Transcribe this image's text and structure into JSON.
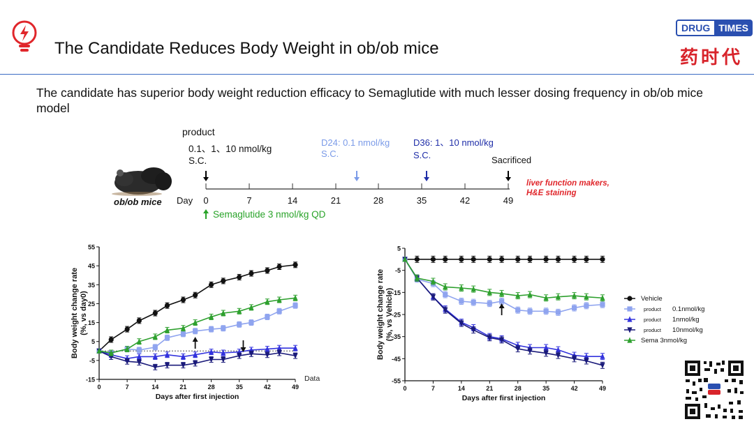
{
  "header": {
    "title": "The Candidate Reduces Body Weight in ob/ob mice",
    "subtitle": "The candidate has superior body weight reduction efficacy to Semaglutide with much lesser dosing frequency in ob/ob mice model",
    "logo_en_left": "DRUG",
    "logo_en_right": "TIMES",
    "logo_cn": "药时代",
    "icon": "lightbulb-icon"
  },
  "timeline": {
    "product_label": "product",
    "product_dose": "0.1、1、10 nmol/kg",
    "product_route": "S.C.",
    "d24_dose": "D24: 0.1 nmol/kg",
    "d24_route": "S.C.",
    "d36_dose": "D36: 1、10 nmol/kg",
    "d36_route": "S.C.",
    "sacrificed": "Sacrificed",
    "readout_line1": "liver function makers,",
    "readout_line2": "H&E staining",
    "model_label": "ob/ob mice",
    "day_label": "Day",
    "days": [
      "0",
      "7",
      "14",
      "21",
      "28",
      "35",
      "42",
      "49"
    ],
    "sema_label": "Semaglutide 3 nmol/kg QD",
    "colors": {
      "product": "#000000",
      "d24": "#7b9be8",
      "d36": "#1f2ea8",
      "sema": "#29a329",
      "readout": "#e0262b"
    }
  },
  "chart_data": [
    {
      "type": "line",
      "xlabel": "Days after first injection",
      "ylabel": "Body weight change rate (%, vs day0)",
      "xlim": [
        0,
        49
      ],
      "ylim": [
        -15,
        55
      ],
      "xticks": [
        "0",
        "7",
        "14",
        "21",
        "28",
        "35",
        "42",
        "49"
      ],
      "yticks": [
        "-15",
        "-5",
        "5",
        "15",
        "25",
        "35",
        "45",
        "55"
      ],
      "x": [
        0,
        3,
        7,
        10,
        14,
        17,
        21,
        24,
        28,
        31,
        35,
        38,
        42,
        45,
        49
      ],
      "footnote": "Data shown as M",
      "series": [
        {
          "name": "Vehicle",
          "color": "#111111",
          "values": [
            0,
            6,
            11.5,
            16,
            20,
            24,
            27,
            29.5,
            35,
            37,
            39,
            41,
            42.5,
            44.5,
            45.5
          ]
        },
        {
          "name": "product 0.1nmol/kg",
          "color": "#8fa4ef",
          "values": [
            0,
            -1,
            1,
            0.5,
            2,
            7,
            9,
            10.5,
            11.5,
            12,
            14,
            15,
            18,
            21,
            24
          ]
        },
        {
          "name": "product 1nmol/kg",
          "color": "#3333dd",
          "values": [
            0,
            -2,
            -4,
            -3,
            -3,
            -2,
            -3,
            -2,
            -0.5,
            -1,
            -0.5,
            0.5,
            1,
            1.5,
            1.5
          ]
        },
        {
          "name": "product 10nmol/kg",
          "color": "#1a1a7a",
          "values": [
            0,
            -3,
            -5.5,
            -6,
            -8.5,
            -7.5,
            -7.5,
            -6.5,
            -4.5,
            -4.5,
            -2.5,
            -1.5,
            -2,
            -1,
            -2.5
          ]
        },
        {
          "name": "Sema 3nmol/kg",
          "color": "#2ea02e",
          "values": [
            0,
            -1,
            1,
            5,
            7.5,
            11,
            12,
            15,
            18,
            20,
            21,
            23,
            26,
            27,
            28
          ]
        }
      ],
      "arrows_at": [
        24,
        36
      ]
    },
    {
      "type": "line",
      "xlabel": "Days after first injection",
      "ylabel": "Body weight change rate (%, vs Vehicle)",
      "xlim": [
        0,
        49
      ],
      "ylim": [
        -55,
        5
      ],
      "xticks": [
        "0",
        "7",
        "14",
        "21",
        "28",
        "35",
        "42",
        "49"
      ],
      "yticks": [
        "5",
        "-5",
        "-15",
        "-25",
        "-35",
        "-45",
        "-55"
      ],
      "x": [
        0,
        3,
        7,
        10,
        14,
        17,
        21,
        24,
        28,
        31,
        35,
        38,
        42,
        45,
        49
      ],
      "series": [
        {
          "name": "Vehicle",
          "color": "#111111",
          "values": [
            0,
            0,
            0,
            0,
            0,
            0,
            0,
            0,
            0,
            0,
            0,
            0,
            0,
            0,
            0
          ]
        },
        {
          "name": "product 0.1nmol/kg",
          "color": "#8fa4ef",
          "values": [
            0,
            -9,
            -11,
            -16,
            -19,
            -19.5,
            -20,
            -19,
            -23,
            -23.5,
            -23.5,
            -24,
            -22,
            -21,
            -20.5
          ]
        },
        {
          "name": "product 1nmol/kg",
          "color": "#3333dd",
          "values": [
            0,
            -8.5,
            -17,
            -22.5,
            -28.5,
            -31,
            -35,
            -36,
            -39,
            -40,
            -40,
            -41,
            -43.5,
            -44,
            -44
          ]
        },
        {
          "name": "product 10nmol/kg",
          "color": "#1a1a7a",
          "values": [
            0,
            -8.5,
            -17,
            -23,
            -29,
            -32,
            -35.5,
            -36.5,
            -40.5,
            -41.5,
            -42.5,
            -43.5,
            -45,
            -46,
            -48
          ]
        },
        {
          "name": "Sema 3nmol/kg",
          "color": "#2ea02e",
          "values": [
            0,
            -8.5,
            -10,
            -12.5,
            -13,
            -13.5,
            -15,
            -15.5,
            -16.5,
            -16,
            -17.5,
            -17,
            -16.5,
            -17,
            -17.5
          ]
        }
      ],
      "arrows_at": [
        24
      ],
      "legend": [
        {
          "marker": "circle",
          "prefix": "",
          "label": "Vehicle"
        },
        {
          "marker": "square",
          "prefix": "product",
          "label": "0.1nmol/kg"
        },
        {
          "marker": "triangle",
          "prefix": "product",
          "label": "1nmol/kg"
        },
        {
          "marker": "tri-down",
          "prefix": "product",
          "label": "10nmol/kg"
        },
        {
          "marker": "triangle",
          "prefix": "",
          "label": "Sema 3nmol/kg"
        }
      ]
    }
  ]
}
